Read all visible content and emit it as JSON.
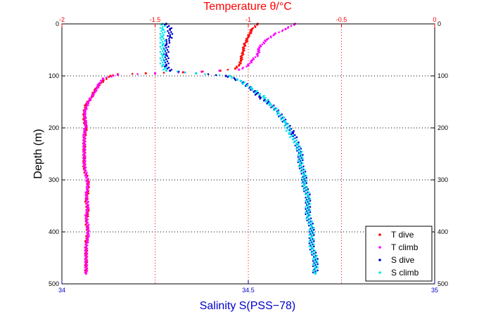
{
  "chart_data": {
    "type": "scatter",
    "top_axis": {
      "label": "Temperature θ/°C",
      "lim": [
        -2,
        0
      ],
      "ticks": [
        -2,
        -1.5,
        -1,
        -0.5,
        0
      ],
      "tick_labels": [
        "-2",
        "-1.5",
        "-1",
        "-0.5",
        "0"
      ],
      "color": "#ff0000"
    },
    "bottom_axis": {
      "label": "Salinity S(PSS−78)",
      "lim": [
        34,
        35
      ],
      "ticks": [
        34,
        34.5,
        35
      ],
      "tick_labels": [
        "34",
        "34.5",
        "35"
      ],
      "color": "#0000cc"
    },
    "y_axis": {
      "label": "Depth (m)",
      "lim": [
        0,
        500
      ],
      "reversed": true,
      "ticks": [
        0,
        100,
        200,
        300,
        400,
        500
      ],
      "tick_labels": [
        "0",
        "100",
        "200",
        "300",
        "400",
        "500"
      ]
    },
    "grid": true,
    "legend_position": "bottom-right",
    "series": [
      {
        "name": "T dive",
        "axis": "temperature",
        "color": "#ff0000",
        "points": [
          [
            -0.95,
            0
          ],
          [
            -0.98,
            10
          ],
          [
            -1.0,
            25
          ],
          [
            -1.02,
            40
          ],
          [
            -1.03,
            55
          ],
          [
            -1.04,
            70
          ],
          [
            -1.05,
            80
          ],
          [
            -1.07,
            86
          ],
          [
            -1.15,
            90
          ],
          [
            -1.35,
            93
          ],
          [
            -1.55,
            95
          ],
          [
            -1.7,
            97
          ],
          [
            -1.74,
            100
          ],
          [
            -1.78,
            110
          ],
          [
            -1.82,
            125
          ],
          [
            -1.84,
            140
          ],
          [
            -1.87,
            155
          ],
          [
            -1.88,
            170
          ],
          [
            -1.88,
            185
          ],
          [
            -1.87,
            200
          ],
          [
            -1.88,
            220
          ],
          [
            -1.88,
            240
          ],
          [
            -1.88,
            260
          ],
          [
            -1.88,
            280
          ],
          [
            -1.86,
            300
          ],
          [
            -1.86,
            320
          ],
          [
            -1.87,
            340
          ],
          [
            -1.86,
            360
          ],
          [
            -1.87,
            380
          ],
          [
            -1.86,
            400
          ],
          [
            -1.87,
            420
          ],
          [
            -1.87,
            440
          ],
          [
            -1.87,
            460
          ],
          [
            -1.87,
            480
          ]
        ]
      },
      {
        "name": "T climb",
        "axis": "temperature",
        "color": "#ff00ff",
        "points": [
          [
            -0.75,
            0
          ],
          [
            -0.8,
            10
          ],
          [
            -0.86,
            20
          ],
          [
            -0.9,
            30
          ],
          [
            -0.94,
            45
          ],
          [
            -0.95,
            60
          ],
          [
            -0.98,
            70
          ],
          [
            -1.0,
            80
          ],
          [
            -1.05,
            88
          ],
          [
            -1.25,
            92
          ],
          [
            -1.5,
            95
          ],
          [
            -1.7,
            98
          ],
          [
            -1.78,
            105
          ],
          [
            -1.8,
            115
          ],
          [
            -1.82,
            130
          ],
          [
            -1.85,
            145
          ],
          [
            -1.87,
            160
          ],
          [
            -1.88,
            175
          ],
          [
            -1.87,
            190
          ],
          [
            -1.88,
            210
          ],
          [
            -1.88,
            230
          ],
          [
            -1.88,
            250
          ],
          [
            -1.88,
            270
          ],
          [
            -1.87,
            290
          ],
          [
            -1.86,
            310
          ],
          [
            -1.87,
            330
          ],
          [
            -1.86,
            350
          ],
          [
            -1.87,
            370
          ],
          [
            -1.86,
            390
          ],
          [
            -1.86,
            410
          ],
          [
            -1.87,
            430
          ],
          [
            -1.87,
            450
          ],
          [
            -1.87,
            480
          ]
        ]
      },
      {
        "name": "S dive",
        "axis": "salinity",
        "color": "#0000cc",
        "points": [
          [
            34.28,
            0
          ],
          [
            34.29,
            10
          ],
          [
            34.29,
            25
          ],
          [
            34.28,
            40
          ],
          [
            34.28,
            60
          ],
          [
            34.28,
            80
          ],
          [
            34.29,
            90
          ],
          [
            34.36,
            95
          ],
          [
            34.44,
            100
          ],
          [
            34.48,
            110
          ],
          [
            34.51,
            125
          ],
          [
            34.53,
            140
          ],
          [
            34.56,
            155
          ],
          [
            34.58,
            170
          ],
          [
            34.6,
            190
          ],
          [
            34.62,
            210
          ],
          [
            34.63,
            230
          ],
          [
            34.64,
            250
          ],
          [
            34.64,
            270
          ],
          [
            34.65,
            290
          ],
          [
            34.65,
            310
          ],
          [
            34.66,
            330
          ],
          [
            34.66,
            350
          ],
          [
            34.66,
            370
          ],
          [
            34.67,
            390
          ],
          [
            34.67,
            410
          ],
          [
            34.67,
            430
          ],
          [
            34.68,
            450
          ],
          [
            34.68,
            470
          ],
          [
            34.68,
            480
          ]
        ]
      },
      {
        "name": "S climb",
        "axis": "salinity",
        "color": "#00e5ee",
        "points": [
          [
            34.27,
            0
          ],
          [
            34.27,
            10
          ],
          [
            34.27,
            25
          ],
          [
            34.27,
            40
          ],
          [
            34.27,
            60
          ],
          [
            34.27,
            80
          ],
          [
            34.28,
            90
          ],
          [
            34.36,
            95
          ],
          [
            34.45,
            100
          ],
          [
            34.48,
            110
          ],
          [
            34.51,
            125
          ],
          [
            34.54,
            140
          ],
          [
            34.56,
            155
          ],
          [
            34.58,
            170
          ],
          [
            34.6,
            190
          ],
          [
            34.61,
            210
          ],
          [
            34.63,
            230
          ],
          [
            34.64,
            250
          ],
          [
            34.64,
            270
          ],
          [
            34.65,
            290
          ],
          [
            34.65,
            310
          ],
          [
            34.66,
            330
          ],
          [
            34.66,
            350
          ],
          [
            34.66,
            370
          ],
          [
            34.67,
            390
          ],
          [
            34.67,
            410
          ],
          [
            34.67,
            430
          ],
          [
            34.68,
            450
          ],
          [
            34.68,
            470
          ],
          [
            34.68,
            480
          ]
        ]
      }
    ]
  }
}
